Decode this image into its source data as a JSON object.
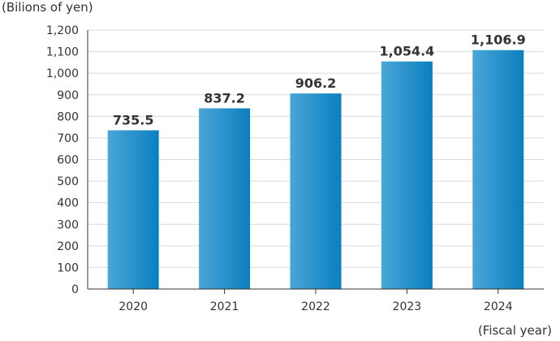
{
  "chart_data": {
    "type": "bar",
    "categories": [
      "2020",
      "2021",
      "2022",
      "2023",
      "2024"
    ],
    "values": [
      735.5,
      837.2,
      906.2,
      1054.4,
      1106.9
    ],
    "value_labels": [
      "735.5",
      "837.2",
      "906.2",
      "1,054.4",
      "1,106.9"
    ],
    "ylabel": "(Bilions of yen)",
    "xlabel": "(Fiscal year)",
    "ylim": [
      0,
      1200
    ],
    "yticks": [
      0,
      100,
      200,
      300,
      400,
      500,
      600,
      700,
      800,
      900,
      1000,
      1100,
      1200
    ],
    "ytick_labels": [
      "0",
      "100",
      "200",
      "300",
      "400",
      "500",
      "600",
      "700",
      "800",
      "900",
      "1,000",
      "1,100",
      "1,200"
    ],
    "grid": true,
    "colors": {
      "bar_light": "#4aa6d6",
      "bar_dark": "#0a7fc0",
      "grid": "#d9d9d9",
      "axis": "#333333"
    }
  }
}
